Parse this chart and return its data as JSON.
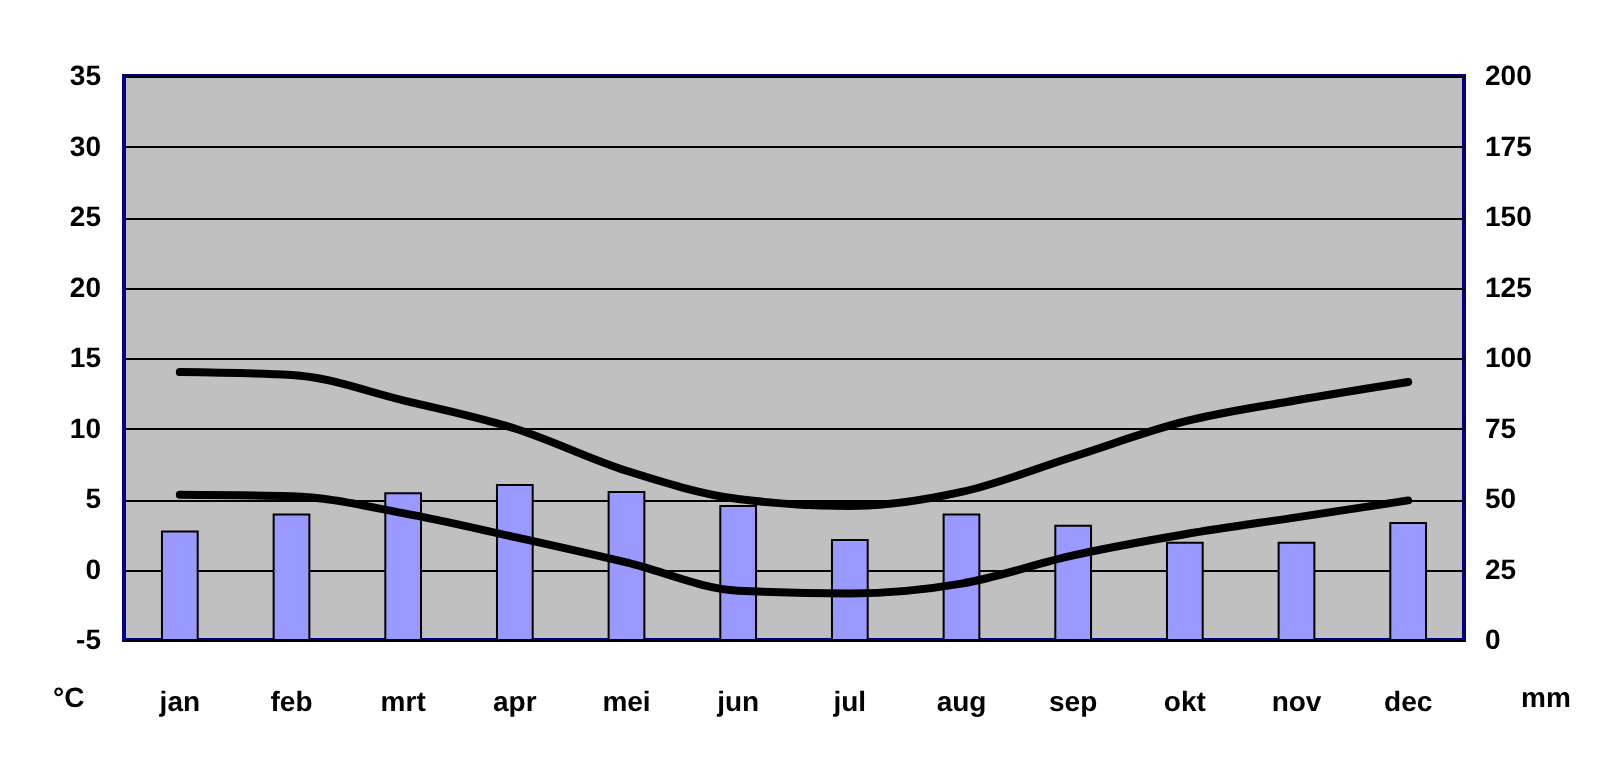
{
  "chart_data": {
    "type": "line",
    "ylabel": "°C",
    "y2label": "mm",
    "categories": [
      "jan",
      "feb",
      "mrt",
      "apr",
      "mei",
      "jun",
      "jul",
      "aug",
      "sep",
      "okt",
      "nov",
      "dec"
    ],
    "series": [
      {
        "type": "bar",
        "axis": "y2",
        "color": "#9999ff",
        "values": [
          38.5,
          44.5,
          52,
          55,
          52.5,
          47.5,
          35.5,
          44.5,
          40.5,
          34.5,
          34.5,
          41.5
        ]
      },
      {
        "color": "#000000",
        "values": [
          14,
          13.8,
          12,
          10,
          7,
          5,
          4.5,
          5.5,
          8,
          10.5,
          12,
          13.3
        ]
      },
      {
        "color": "#000000",
        "values": [
          5.3,
          5.2,
          4,
          2.3,
          0.5,
          -1.5,
          -1.7,
          -1,
          1,
          2.5,
          3.7,
          4.9
        ]
      }
    ],
    "ylim": [
      -5,
      35
    ],
    "yticks": [
      -5,
      0,
      5,
      10,
      15,
      20,
      25,
      30,
      35
    ],
    "y2lim": [
      0,
      200
    ],
    "y2ticks": [
      0,
      25,
      50,
      75,
      100,
      125,
      150,
      175,
      200
    ],
    "grid": "y"
  }
}
